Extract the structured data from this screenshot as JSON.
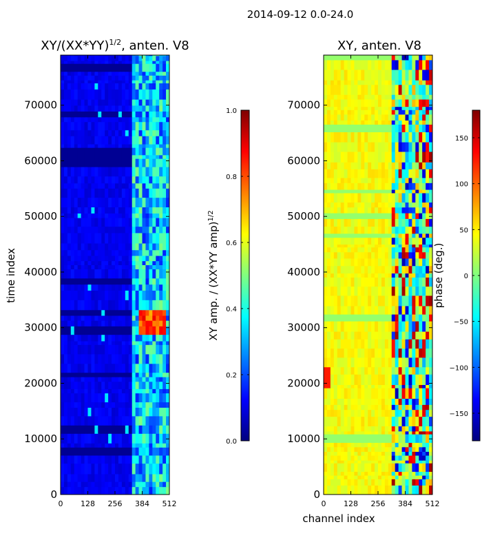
{
  "figure": {
    "suptitle": "2014-09-12 0.0-24.0",
    "shared_xlabel": "channel index"
  },
  "chart_data": [
    {
      "type": "heatmap",
      "title_main": "XY/(XX*YY)",
      "title_exp": "1/2",
      "title_suffix": ", anten. V8",
      "xlabel": "",
      "ylabel": "time index",
      "xlim": [
        0,
        512
      ],
      "ylim": [
        0,
        79000
      ],
      "xticks": [
        0,
        128,
        256,
        384,
        512
      ],
      "yticks": [
        0,
        10000,
        20000,
        30000,
        40000,
        50000,
        60000,
        70000
      ],
      "colorbar": {
        "label_main": "XY amp. / (XX*YY amp)",
        "label_exp": "1/2",
        "range": [
          0.0,
          1.0
        ],
        "ticks": [
          "0.0",
          "0.2",
          "0.4",
          "0.6",
          "0.8",
          "1.0"
        ]
      }
    },
    {
      "type": "heatmap",
      "title": "XY, anten. V8",
      "xlabel": "channel index",
      "ylabel": "",
      "xlim": [
        0,
        512
      ],
      "ylim": [
        0,
        79000
      ],
      "xticks": [
        0,
        128,
        256,
        384,
        512
      ],
      "yticks": [
        0,
        10000,
        20000,
        30000,
        40000,
        50000,
        60000,
        70000
      ],
      "colorbar": {
        "label": "phase (deg.)",
        "range": [
          -180,
          180
        ],
        "ticks": [
          "−150",
          "−100",
          "−50",
          "0",
          "50",
          "100",
          "150"
        ]
      }
    }
  ],
  "colormap_stops": [
    "#00007f",
    "#0000ff",
    "#0080ff",
    "#00ffff",
    "#80ff80",
    "#ffff00",
    "#ff8000",
    "#ff0000",
    "#7f0000"
  ]
}
